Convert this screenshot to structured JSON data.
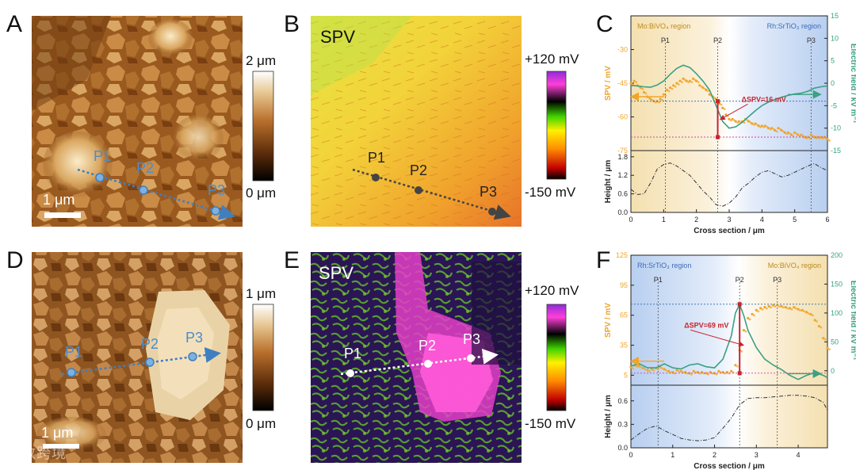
{
  "panels": {
    "A": {
      "letter": "A",
      "points": [
        "P1",
        "P2",
        "P3"
      ],
      "scalebar": "1 μm",
      "colorbar": {
        "max": "2 μm",
        "min": "0 μm"
      }
    },
    "B": {
      "letter": "B",
      "title": "SPV",
      "points": [
        "P1",
        "P2",
        "P3"
      ],
      "colorbar": {
        "max": "+120 mV",
        "min": "-150 mV"
      }
    },
    "D": {
      "letter": "D",
      "points": [
        "P1",
        "P2",
        "P3"
      ],
      "scalebar": "1 μm",
      "colorbar": {
        "max": "1 μm",
        "min": "0 μm"
      }
    },
    "E": {
      "letter": "E",
      "title": "SPV",
      "points": [
        "P1",
        "P2",
        "P3"
      ],
      "colorbar": {
        "max": "+120 mV",
        "min": "-150 mV"
      }
    }
  },
  "watermark": "大数跨境",
  "colors": {
    "spv_series": "#f0a52a",
    "efield_series": "#3aa183",
    "marker_line": "#c8232c",
    "point_marker_blue": "#3f7fc0",
    "cb_afm": [
      "#000000",
      "#5b2c0a",
      "#b9702c",
      "#e6c590",
      "#ffffff"
    ],
    "cb_spv": [
      "#8f2bd8",
      "#ff3fd8",
      "#000000",
      "#3fd400",
      "#fff000",
      "#ff8c00",
      "#c00000",
      "#000000"
    ]
  },
  "chart_data": [
    {
      "panel": "C",
      "type": "scatter",
      "ylabel": "SPV / mV",
      "y2label": "Electric field / kV m⁻¹",
      "xlim": [
        0,
        6
      ],
      "ylim": [
        -75,
        -15
      ],
      "y2lim": [
        -15,
        15
      ],
      "yticks": [
        -75,
        -60,
        -45,
        -30
      ],
      "y2ticks": [
        -15,
        -10,
        -5,
        0,
        5,
        10,
        15
      ],
      "regions": [
        {
          "label": "Mo:BiVO₄ region",
          "from": 0,
          "to": 2.7,
          "color": "#f4e0b0"
        },
        {
          "label": "Rh:SrTiO₃ region",
          "from": 2.7,
          "to": 6,
          "color": "#b8cff0"
        }
      ],
      "points_marked": [
        {
          "label": "P1",
          "x": 1.05
        },
        {
          "label": "P2",
          "x": 2.65
        },
        {
          "label": "P3",
          "x": 5.5
        }
      ],
      "annotation": {
        "text": "ΔSPV=16 mV",
        "x": 2.65,
        "y_top": -53,
        "y_bottom": -69
      },
      "series": [
        {
          "name": "SPV",
          "kind": "dots",
          "x": [
            0.0,
            0.1,
            0.2,
            0.3,
            0.4,
            0.5,
            0.6,
            0.7,
            0.8,
            0.9,
            1.0,
            1.1,
            1.2,
            1.3,
            1.4,
            1.5,
            1.6,
            1.7,
            1.8,
            1.9,
            2.0,
            2.1,
            2.2,
            2.3,
            2.4,
            2.5,
            2.6,
            2.7,
            2.8,
            2.9,
            3.0,
            3.1,
            3.2,
            3.3,
            3.4,
            3.5,
            3.6,
            3.7,
            3.8,
            3.9,
            4.0,
            4.1,
            4.2,
            4.3,
            4.4,
            4.5,
            4.6,
            4.7,
            4.8,
            4.9,
            5.0,
            5.1,
            5.2,
            5.3,
            5.4,
            5.5,
            5.6,
            5.7,
            5.8,
            5.9,
            6.0
          ],
          "y": [
            -45,
            -44,
            -46,
            -47,
            -49,
            -51,
            -52,
            -53,
            -53,
            -52,
            -50,
            -48,
            -47,
            -46,
            -45,
            -44,
            -43,
            -44,
            -44,
            -43,
            -44,
            -46,
            -47,
            -48,
            -50,
            -51,
            -52,
            -54,
            -56,
            -59,
            -61,
            -61,
            -62,
            -62,
            -62,
            -61,
            -62,
            -63,
            -63,
            -64,
            -64,
            -64,
            -65,
            -65,
            -66,
            -65,
            -66,
            -67,
            -67,
            -68,
            -67,
            -68,
            -68,
            -69,
            -69,
            -68,
            -69,
            -69,
            -69,
            -69,
            -70
          ]
        },
        {
          "name": "Electric field",
          "kind": "line",
          "axis": "y2",
          "x": [
            0.0,
            0.2,
            0.4,
            0.6,
            0.8,
            1.0,
            1.2,
            1.4,
            1.6,
            1.8,
            2.0,
            2.2,
            2.4,
            2.6,
            2.8,
            3.0,
            3.2,
            3.4,
            3.6,
            3.8,
            4.0,
            4.2,
            4.4,
            4.6,
            4.8,
            5.0,
            5.2,
            5.4,
            5.6,
            5.8,
            6.0
          ],
          "y": [
            -0.5,
            -0.6,
            -0.8,
            -0.9,
            -0.4,
            0.5,
            2.0,
            3.3,
            4.0,
            3.5,
            2.1,
            0.5,
            -1.5,
            -5.0,
            -8.5,
            -10.0,
            -9.7,
            -8.7,
            -7.4,
            -6.1,
            -5.0,
            -4.2,
            -3.6,
            -3.1,
            -2.7,
            -2.4,
            -2.2,
            -1.8,
            -1.1,
            -0.8,
            -0.6
          ]
        }
      ]
    },
    {
      "panel": "C-height",
      "type": "line",
      "xlabel": "Cross section / μm",
      "ylabel": "Height / μm",
      "xlim": [
        0,
        6
      ],
      "ylim": [
        0,
        2.0
      ],
      "xticks": [
        0,
        1,
        2,
        3,
        4,
        5,
        6
      ],
      "yticks": [
        0.0,
        0.6,
        1.2,
        1.8
      ],
      "series": [
        {
          "name": "Height",
          "x": [
            0.0,
            0.2,
            0.4,
            0.6,
            0.8,
            1.0,
            1.2,
            1.4,
            1.6,
            1.8,
            2.0,
            2.2,
            2.4,
            2.6,
            2.8,
            3.0,
            3.2,
            3.4,
            3.6,
            3.8,
            4.0,
            4.2,
            4.4,
            4.6,
            4.8,
            5.0,
            5.2,
            5.4,
            5.6,
            5.8,
            6.0
          ],
          "y": [
            0.75,
            0.58,
            0.6,
            0.95,
            1.4,
            1.55,
            1.6,
            1.5,
            1.35,
            1.2,
            0.95,
            0.7,
            0.5,
            0.25,
            0.2,
            0.3,
            0.5,
            0.8,
            0.95,
            1.15,
            1.3,
            1.35,
            1.25,
            1.15,
            1.2,
            1.3,
            1.4,
            1.5,
            1.58,
            1.45,
            1.35
          ]
        }
      ]
    },
    {
      "panel": "F",
      "type": "scatter",
      "ylabel": "SPV / mV",
      "y2label": "Electric field / kV m⁻¹",
      "xlim": [
        0,
        4.7
      ],
      "ylim": [
        -5,
        125
      ],
      "y2lim": [
        -25,
        200
      ],
      "yticks": [
        5,
        35,
        65,
        95,
        125
      ],
      "y2ticks": [
        0,
        50,
        100,
        150,
        200
      ],
      "regions": [
        {
          "label": "Rh:SrTiO₃ region",
          "from": 0,
          "to": 2.6,
          "color": "#b8cff0"
        },
        {
          "label": "Mo:BiVO₄ region",
          "from": 2.6,
          "to": 4.7,
          "color": "#f4e0b0"
        }
      ],
      "points_marked": [
        {
          "label": "P1",
          "x": 0.65
        },
        {
          "label": "P2",
          "x": 2.6
        },
        {
          "label": "P3",
          "x": 3.5
        }
      ],
      "annotation": {
        "text": "ΔSPV=69 mV",
        "x": 2.6,
        "y_top": 76,
        "y_bottom": 7
      },
      "series": [
        {
          "name": "SPV",
          "kind": "dots",
          "x": [
            0.0,
            0.1,
            0.2,
            0.3,
            0.4,
            0.5,
            0.6,
            0.7,
            0.8,
            0.9,
            1.0,
            1.1,
            1.2,
            1.3,
            1.4,
            1.5,
            1.6,
            1.7,
            1.8,
            1.9,
            2.0,
            2.1,
            2.2,
            2.3,
            2.4,
            2.5,
            2.6,
            2.7,
            2.8,
            2.9,
            3.0,
            3.1,
            3.2,
            3.3,
            3.4,
            3.5,
            3.6,
            3.7,
            3.8,
            3.9,
            4.0,
            4.1,
            4.2,
            4.3,
            4.4,
            4.5,
            4.6,
            4.7
          ],
          "y": [
            13,
            15,
            14,
            12,
            10,
            11,
            12,
            13,
            11,
            9,
            8,
            10,
            9,
            8,
            7,
            9,
            8,
            8,
            7,
            8,
            7,
            9,
            8,
            8,
            9,
            15,
            30,
            50,
            62,
            66,
            70,
            72,
            73,
            74,
            75,
            75,
            74,
            73,
            72,
            73,
            71,
            70,
            68,
            66,
            60,
            54,
            42,
            32
          ]
        },
        {
          "name": "Electric field",
          "kind": "line",
          "axis": "y2",
          "x": [
            0.0,
            0.2,
            0.4,
            0.6,
            0.8,
            1.0,
            1.2,
            1.4,
            1.6,
            1.8,
            2.0,
            2.2,
            2.4,
            2.5,
            2.6,
            2.7,
            2.8,
            3.0,
            3.2,
            3.4,
            3.6,
            3.8,
            4.0,
            4.2,
            4.4,
            4.6,
            4.7
          ],
          "y": [
            8,
            12,
            5,
            5,
            12,
            5,
            3,
            10,
            12,
            7,
            5,
            20,
            60,
            100,
            115,
            95,
            70,
            40,
            20,
            10,
            2,
            -8,
            -15,
            -8,
            -3,
            -8,
            -12
          ]
        }
      ]
    },
    {
      "panel": "F-height",
      "type": "line",
      "xlabel": "Cross section / μm",
      "ylabel": "Height / μm",
      "xlim": [
        0,
        4.7
      ],
      "ylim": [
        0,
        0.8
      ],
      "xticks": [
        0,
        1,
        2,
        3,
        4
      ],
      "yticks": [
        0.0,
        0.3,
        0.6
      ],
      "series": [
        {
          "name": "Height",
          "x": [
            0.0,
            0.2,
            0.4,
            0.6,
            0.8,
            1.0,
            1.2,
            1.4,
            1.6,
            1.8,
            2.0,
            2.2,
            2.4,
            2.6,
            2.8,
            3.0,
            3.2,
            3.4,
            3.6,
            3.8,
            4.0,
            4.2,
            4.4,
            4.6,
            4.7
          ],
          "y": [
            0.1,
            0.18,
            0.25,
            0.28,
            0.22,
            0.17,
            0.12,
            0.1,
            0.09,
            0.1,
            0.13,
            0.25,
            0.38,
            0.55,
            0.63,
            0.64,
            0.64,
            0.65,
            0.66,
            0.67,
            0.67,
            0.66,
            0.64,
            0.58,
            0.48
          ]
        }
      ]
    }
  ]
}
